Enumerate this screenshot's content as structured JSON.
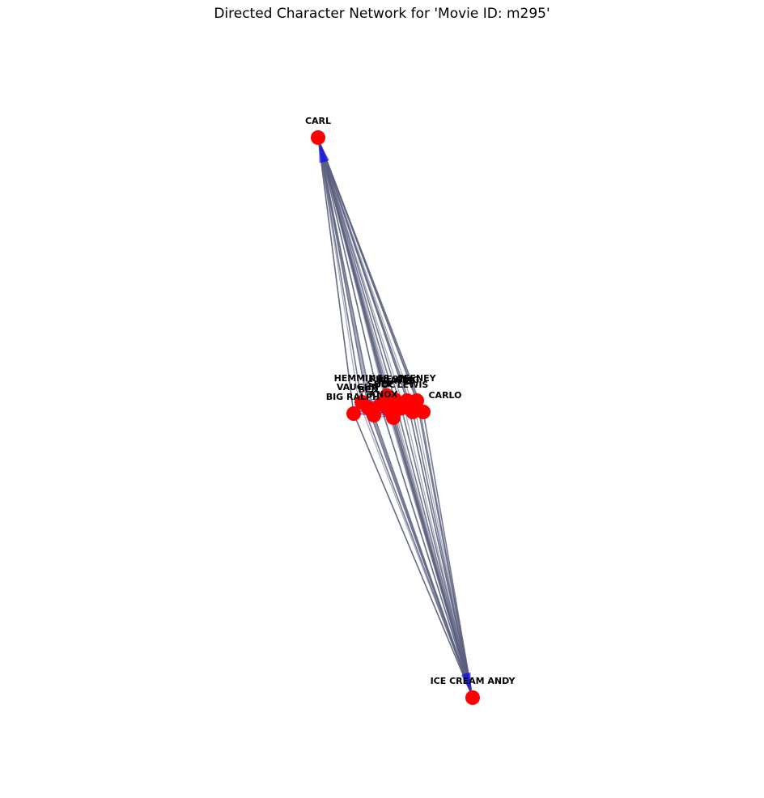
{
  "title": "Directed Character Network for 'Movie ID: m295'",
  "colors": {
    "node": "#ff0000",
    "edge": "#5a5f7e",
    "arrow": "#1f1fdd",
    "label": "#000000"
  },
  "nodes": [
    {
      "id": "CARL",
      "label": "CARL"
    },
    {
      "id": "ICE CREAM ANDY",
      "label": "ICE CREAM ANDY"
    },
    {
      "id": "HEMMINGS",
      "label": "HEMMINGS"
    },
    {
      "id": "VAUGHN",
      "label": "VAUGHN"
    },
    {
      "id": "BIG RALPH",
      "label": "BIG RALPH"
    },
    {
      "id": "FEENEY",
      "label": "FEENEY"
    },
    {
      "id": "LEWIS",
      "label": "LEWIS"
    },
    {
      "id": "CARLO",
      "label": "CARLO"
    },
    {
      "id": "PRIEST",
      "label": "PRIEST"
    },
    {
      "id": "SHEP",
      "label": "SHEP"
    },
    {
      "id": "KNOX",
      "label": "KNOX"
    },
    {
      "id": "LT",
      "label": "LT"
    },
    {
      "id": "TRAVIS",
      "label": "TRAVIS"
    },
    {
      "id": "DOC",
      "label": "DOC"
    },
    {
      "id": "GRIG",
      "label": "GRIG"
    },
    {
      "id": "BEN",
      "label": "BEN"
    }
  ]
}
